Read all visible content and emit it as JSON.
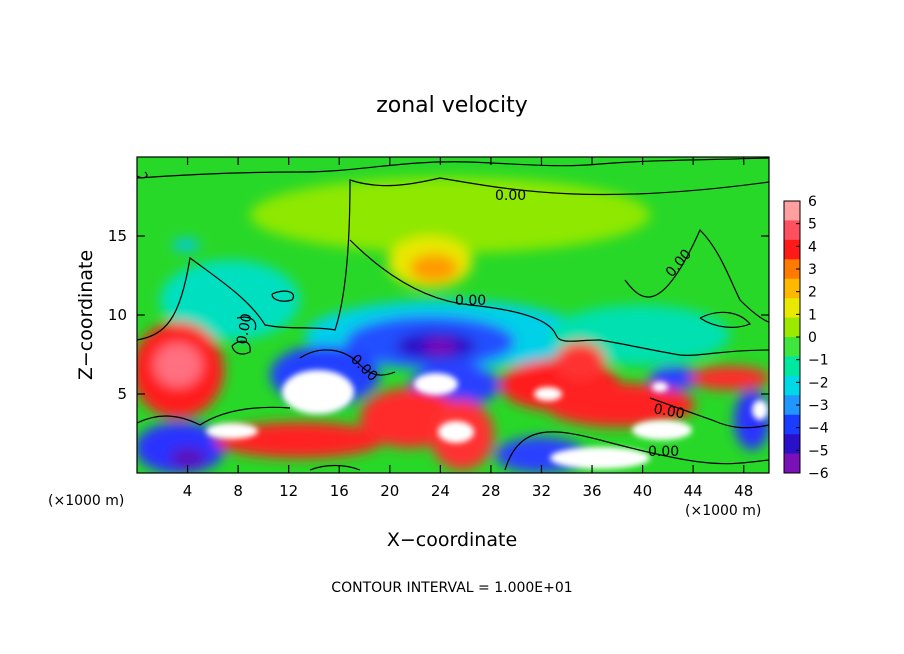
{
  "chart_data": {
    "type": "heatmap",
    "title": "zonal velocity",
    "xlabel": "X−coordinate",
    "ylabel": "Z−coordinate",
    "x_unit_left": "(×1000 m)",
    "x_unit_right": "(×1000 m)",
    "footer": "CONTOUR INTERVAL = 1.000E+01",
    "xlim": [
      0,
      50
    ],
    "ylim": [
      0,
      20
    ],
    "x_ticks": [
      4,
      8,
      12,
      16,
      20,
      24,
      28,
      32,
      36,
      40,
      44,
      48
    ],
    "y_ticks": [
      5,
      10,
      15
    ],
    "colorbar": {
      "labels": [
        "6",
        "5",
        "4",
        "3",
        "2",
        "1",
        "0",
        "−1",
        "−2",
        "−3",
        "−4",
        "−5",
        "−6"
      ],
      "colors": [
        "#ff9fa0",
        "#ff5060",
        "#ff1a1a",
        "#ff7a00",
        "#ffb800",
        "#e8e800",
        "#9be800",
        "#3ee63e",
        "#00e8a0",
        "#00d8e8",
        "#2296ff",
        "#1a3cff",
        "#2a10c8",
        "#7a10b8"
      ]
    },
    "contour_labels": [
      "0.00",
      "0.00",
      "0.00",
      "0.00",
      "0.00",
      "0.00",
      "0.00",
      "0.00"
    ],
    "colors": {
      "background": "#28d828",
      "saturated": "#ffffff",
      "contour": "#000000"
    }
  }
}
